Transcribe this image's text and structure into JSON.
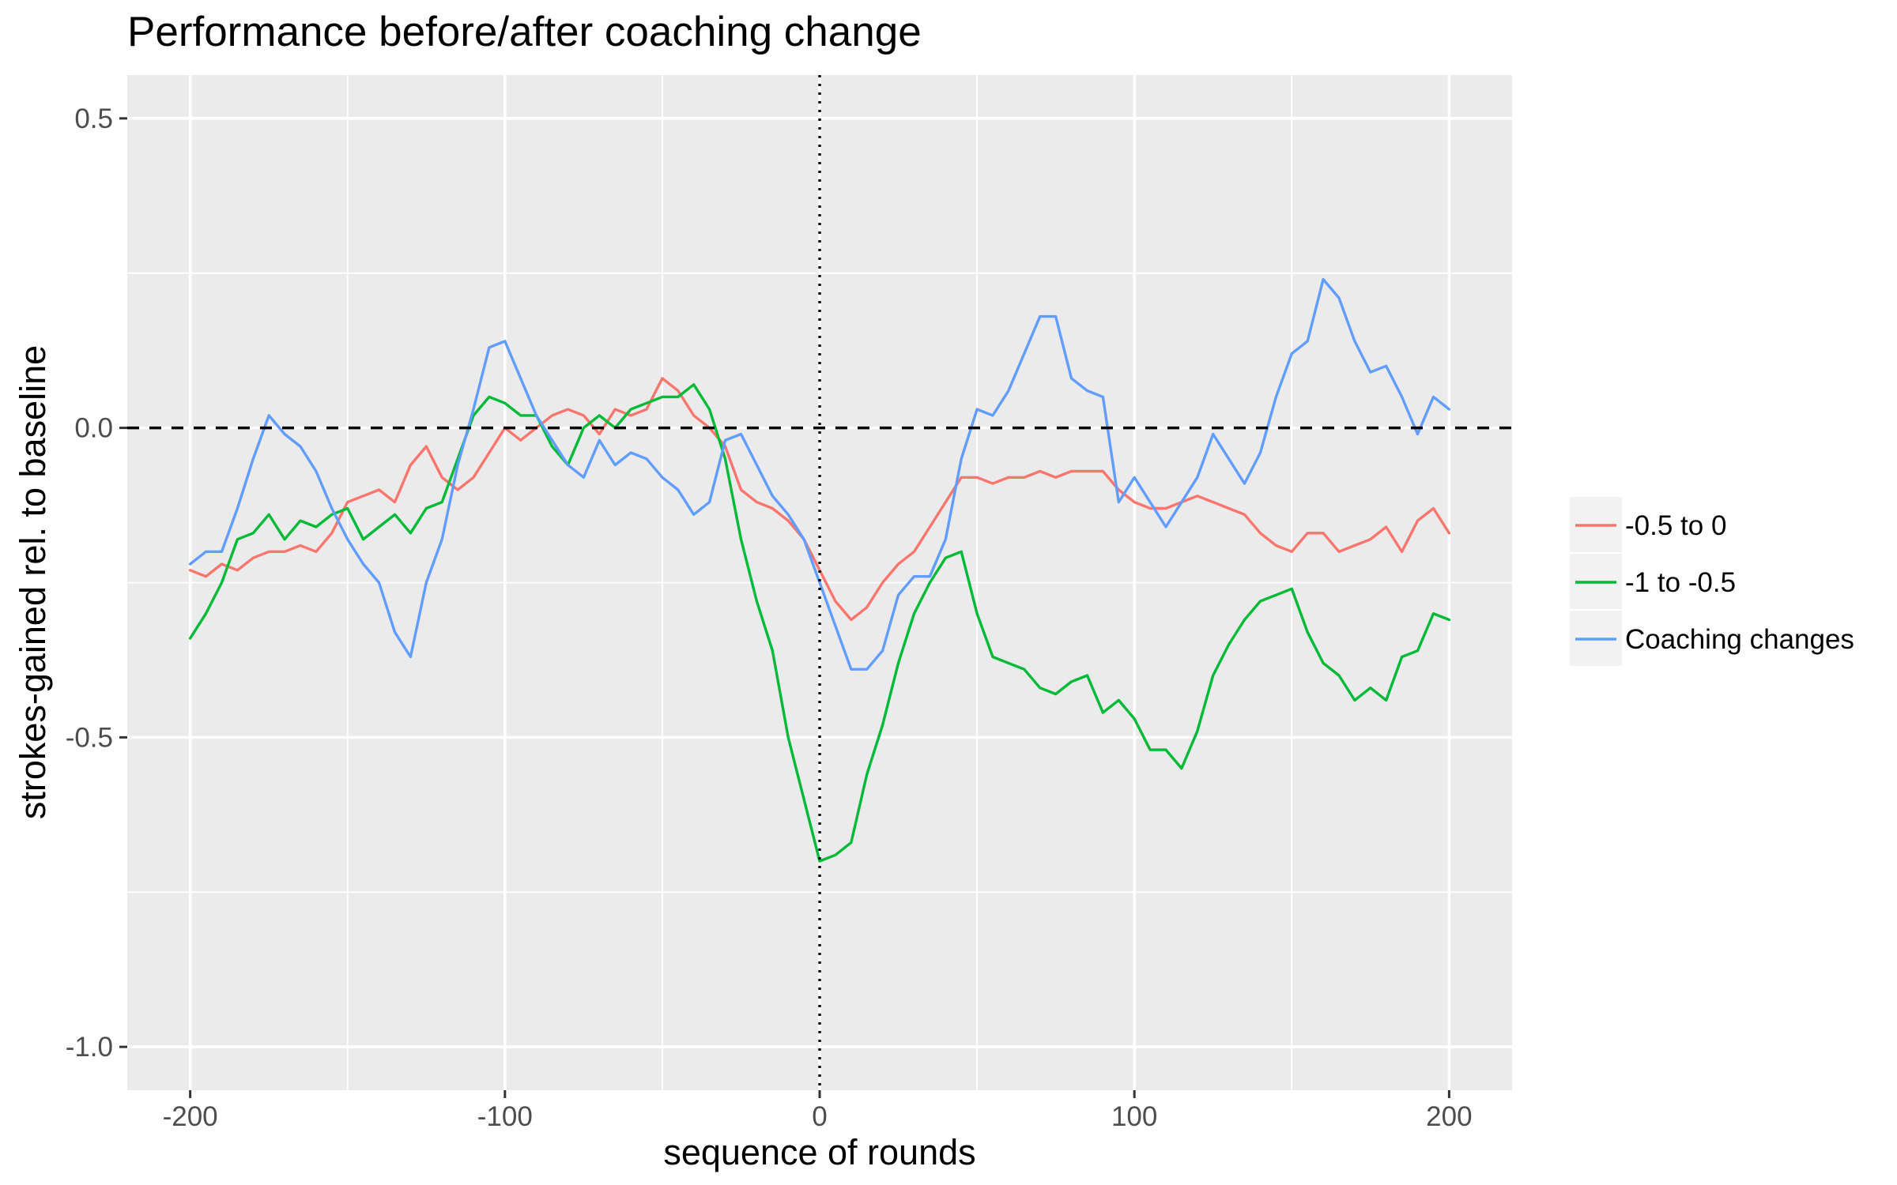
{
  "chart_data": {
    "type": "line",
    "title": "Performance before/after coaching change",
    "xlabel": "sequence of rounds",
    "ylabel": "strokes-gained rel. to baseline",
    "xlim": [
      -220,
      220
    ],
    "ylim": [
      -1.07,
      0.57
    ],
    "x_ticks": [
      -200,
      -100,
      0,
      100,
      200
    ],
    "x_tick_labels": [
      "-200",
      "-100",
      "0",
      "100",
      "200"
    ],
    "y_ticks": [
      0.5,
      0.0,
      -0.5,
      -1.0
    ],
    "y_tick_labels": [
      "0.5",
      "0.0",
      "-0.5",
      "-1.0"
    ],
    "grid": true,
    "legend_position": "right",
    "reference_lines": [
      {
        "orientation": "horizontal",
        "value": 0,
        "style": "dashed"
      },
      {
        "orientation": "vertical",
        "value": 0,
        "style": "dotted"
      }
    ],
    "series": [
      {
        "name": "-0.5 to 0",
        "color": "#F8766D",
        "x": [
          -200,
          -195,
          -190,
          -185,
          -180,
          -175,
          -170,
          -165,
          -160,
          -155,
          -150,
          -145,
          -140,
          -135,
          -130,
          -125,
          -120,
          -115,
          -110,
          -105,
          -100,
          -95,
          -90,
          -85,
          -80,
          -75,
          -70,
          -65,
          -60,
          -55,
          -50,
          -45,
          -40,
          -35,
          -30,
          -25,
          -20,
          -15,
          -10,
          -5,
          0,
          5,
          10,
          15,
          20,
          25,
          30,
          35,
          40,
          45,
          50,
          55,
          60,
          65,
          70,
          75,
          80,
          85,
          90,
          95,
          100,
          105,
          110,
          115,
          120,
          125,
          130,
          135,
          140,
          145,
          150,
          155,
          160,
          165,
          170,
          175,
          180,
          185,
          190,
          195,
          200
        ],
        "y": [
          -0.23,
          -0.24,
          -0.22,
          -0.23,
          -0.21,
          -0.2,
          -0.2,
          -0.19,
          -0.2,
          -0.17,
          -0.12,
          -0.11,
          -0.1,
          -0.12,
          -0.06,
          -0.03,
          -0.08,
          -0.1,
          -0.08,
          -0.04,
          0.0,
          -0.02,
          0.0,
          0.02,
          0.03,
          0.02,
          -0.01,
          0.03,
          0.02,
          0.03,
          0.08,
          0.06,
          0.02,
          0.0,
          -0.03,
          -0.1,
          -0.12,
          -0.13,
          -0.15,
          -0.18,
          -0.23,
          -0.28,
          -0.31,
          -0.29,
          -0.25,
          -0.22,
          -0.2,
          -0.16,
          -0.12,
          -0.08,
          -0.08,
          -0.09,
          -0.08,
          -0.08,
          -0.07,
          -0.08,
          -0.07,
          -0.07,
          -0.07,
          -0.1,
          -0.12,
          -0.13,
          -0.13,
          -0.12,
          -0.11,
          -0.12,
          -0.13,
          -0.14,
          -0.17,
          -0.19,
          -0.2,
          -0.17,
          -0.17,
          -0.2,
          -0.19,
          -0.18,
          -0.16,
          -0.2,
          -0.15,
          -0.13,
          -0.17
        ]
      },
      {
        "name": "-1 to -0.5",
        "color": "#00BA38",
        "x": [
          -200,
          -195,
          -190,
          -185,
          -180,
          -175,
          -170,
          -165,
          -160,
          -155,
          -150,
          -145,
          -140,
          -135,
          -130,
          -125,
          -120,
          -115,
          -110,
          -105,
          -100,
          -95,
          -90,
          -85,
          -80,
          -75,
          -70,
          -65,
          -60,
          -55,
          -50,
          -45,
          -40,
          -35,
          -30,
          -25,
          -20,
          -15,
          -10,
          -5,
          0,
          5,
          10,
          15,
          20,
          25,
          30,
          35,
          40,
          45,
          50,
          55,
          60,
          65,
          70,
          75,
          80,
          85,
          90,
          95,
          100,
          105,
          110,
          115,
          120,
          125,
          130,
          135,
          140,
          145,
          150,
          155,
          160,
          165,
          170,
          175,
          180,
          185,
          190,
          195,
          200
        ],
        "y": [
          -0.34,
          -0.3,
          -0.25,
          -0.18,
          -0.17,
          -0.14,
          -0.18,
          -0.15,
          -0.16,
          -0.14,
          -0.13,
          -0.18,
          -0.16,
          -0.14,
          -0.17,
          -0.13,
          -0.12,
          -0.05,
          0.02,
          0.05,
          0.04,
          0.02,
          0.02,
          -0.03,
          -0.06,
          0.0,
          0.02,
          0.0,
          0.03,
          0.04,
          0.05,
          0.05,
          0.07,
          0.03,
          -0.05,
          -0.18,
          -0.28,
          -0.36,
          -0.5,
          -0.6,
          -0.7,
          -0.69,
          -0.67,
          -0.56,
          -0.48,
          -0.38,
          -0.3,
          -0.25,
          -0.21,
          -0.2,
          -0.3,
          -0.37,
          -0.38,
          -0.39,
          -0.42,
          -0.43,
          -0.41,
          -0.4,
          -0.46,
          -0.44,
          -0.47,
          -0.52,
          -0.52,
          -0.55,
          -0.49,
          -0.4,
          -0.35,
          -0.31,
          -0.28,
          -0.27,
          -0.26,
          -0.33,
          -0.38,
          -0.4,
          -0.44,
          -0.42,
          -0.44,
          -0.37,
          -0.36,
          -0.3,
          -0.31
        ]
      },
      {
        "name": "Coaching changes",
        "color": "#619CFF",
        "x": [
          -200,
          -195,
          -190,
          -185,
          -180,
          -175,
          -170,
          -165,
          -160,
          -155,
          -150,
          -145,
          -140,
          -135,
          -130,
          -125,
          -120,
          -115,
          -110,
          -105,
          -100,
          -95,
          -90,
          -85,
          -80,
          -75,
          -70,
          -65,
          -60,
          -55,
          -50,
          -45,
          -40,
          -35,
          -30,
          -25,
          -20,
          -15,
          -10,
          -5,
          0,
          5,
          10,
          15,
          20,
          25,
          30,
          35,
          40,
          45,
          50,
          55,
          60,
          65,
          70,
          75,
          80,
          85,
          90,
          95,
          100,
          105,
          110,
          115,
          120,
          125,
          130,
          135,
          140,
          145,
          150,
          155,
          160,
          165,
          170,
          175,
          180,
          185,
          190,
          195,
          200
        ],
        "y": [
          -0.22,
          -0.2,
          -0.2,
          -0.13,
          -0.05,
          0.02,
          -0.01,
          -0.03,
          -0.07,
          -0.13,
          -0.18,
          -0.22,
          -0.25,
          -0.33,
          -0.37,
          -0.25,
          -0.18,
          -0.06,
          0.03,
          0.13,
          0.14,
          0.08,
          0.02,
          -0.02,
          -0.06,
          -0.08,
          -0.02,
          -0.06,
          -0.04,
          -0.05,
          -0.08,
          -0.1,
          -0.14,
          -0.12,
          -0.02,
          -0.01,
          -0.06,
          -0.11,
          -0.14,
          -0.18,
          -0.25,
          -0.32,
          -0.39,
          -0.39,
          -0.36,
          -0.27,
          -0.24,
          -0.24,
          -0.18,
          -0.05,
          0.03,
          0.02,
          0.06,
          0.12,
          0.18,
          0.18,
          0.08,
          0.06,
          0.05,
          -0.12,
          -0.08,
          -0.12,
          -0.16,
          -0.12,
          -0.08,
          -0.01,
          -0.05,
          -0.09,
          -0.04,
          0.05,
          0.12,
          0.14,
          0.24,
          0.21,
          0.14,
          0.09,
          0.1,
          0.05,
          -0.01,
          0.05,
          0.03
        ]
      }
    ]
  }
}
